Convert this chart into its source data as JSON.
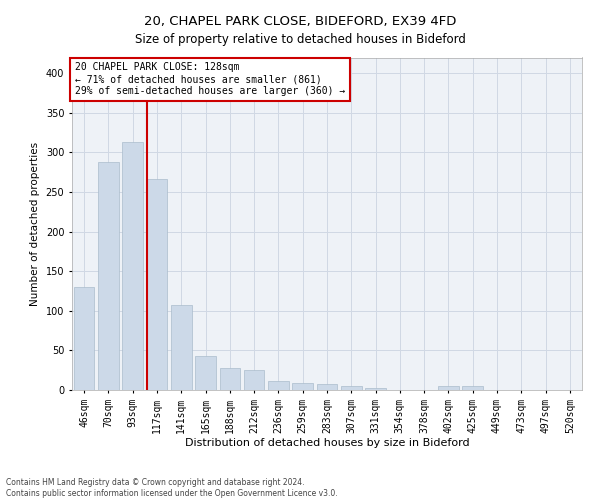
{
  "title1": "20, CHAPEL PARK CLOSE, BIDEFORD, EX39 4FD",
  "title2": "Size of property relative to detached houses in Bideford",
  "xlabel": "Distribution of detached houses by size in Bideford",
  "ylabel": "Number of detached properties",
  "categories": [
    "46sqm",
    "70sqm",
    "93sqm",
    "117sqm",
    "141sqm",
    "165sqm",
    "188sqm",
    "212sqm",
    "236sqm",
    "259sqm",
    "283sqm",
    "307sqm",
    "331sqm",
    "354sqm",
    "378sqm",
    "402sqm",
    "425sqm",
    "449sqm",
    "473sqm",
    "497sqm",
    "520sqm"
  ],
  "values": [
    130,
    288,
    313,
    267,
    108,
    43,
    28,
    25,
    12,
    9,
    7,
    5,
    3,
    0,
    0,
    5,
    5,
    0,
    0,
    0,
    0
  ],
  "bar_color": "#ccd9e8",
  "bar_edge_color": "#aabccc",
  "vline_color": "#cc0000",
  "vline_x_index": 3,
  "annotation_text": "20 CHAPEL PARK CLOSE: 128sqm\n← 71% of detached houses are smaller (861)\n29% of semi-detached houses are larger (360) →",
  "annotation_box_color": "#ffffff",
  "annotation_box_edge": "#cc0000",
  "grid_color": "#d0d8e4",
  "background_color": "#eef2f7",
  "footer_text": "Contains HM Land Registry data © Crown copyright and database right 2024.\nContains public sector information licensed under the Open Government Licence v3.0.",
  "ylim": [
    0,
    420
  ],
  "yticks": [
    0,
    50,
    100,
    150,
    200,
    250,
    300,
    350,
    400
  ],
  "title1_fontsize": 9.5,
  "title2_fontsize": 8.5,
  "xlabel_fontsize": 8,
  "ylabel_fontsize": 7.5,
  "tick_fontsize": 7,
  "annotation_fontsize": 7,
  "footer_fontsize": 5.5
}
